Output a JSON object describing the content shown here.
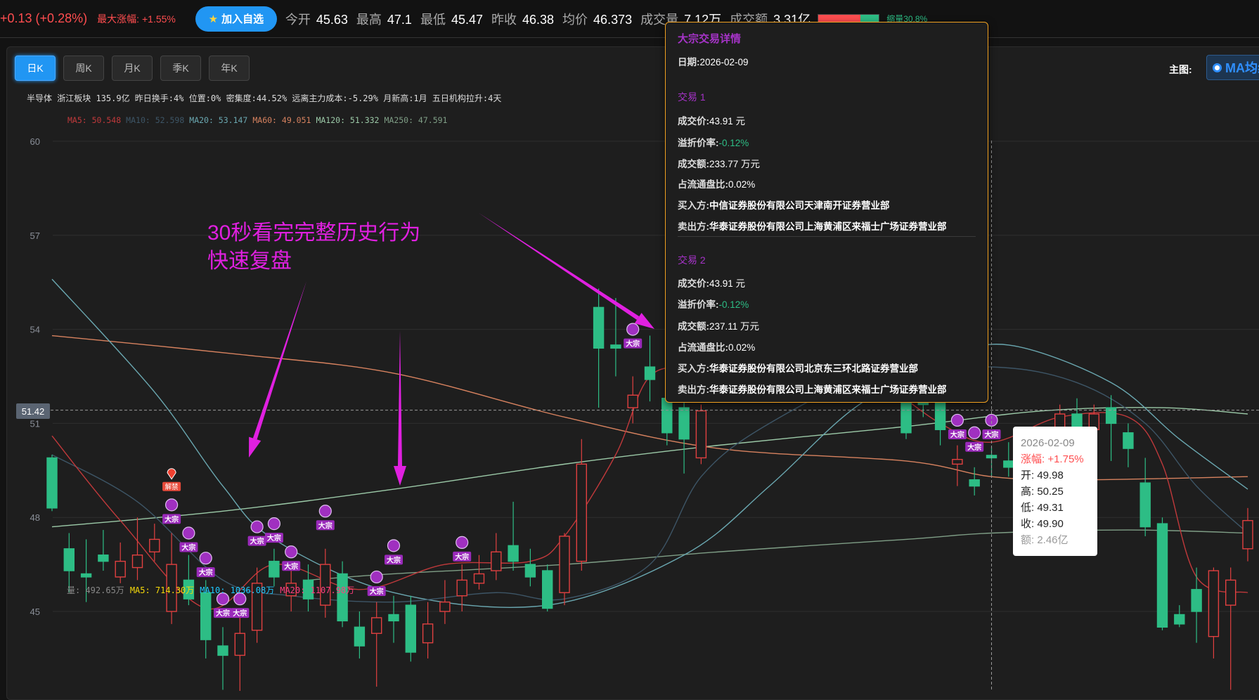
{
  "topbar": {
    "change": "+0.13 (+0.28%)",
    "max_rise_label": "最大涨幅:",
    "max_rise": "+1.55%",
    "fav_button": "加入自选",
    "fav_icon": "star-icon",
    "stats": [
      {
        "label": "今开",
        "value": "45.63"
      },
      {
        "label": "最高",
        "value": "47.1"
      },
      {
        "label": "最低",
        "value": "45.47"
      },
      {
        "label": "昨收",
        "value": "46.38"
      },
      {
        "label": "均价",
        "value": "46.373"
      },
      {
        "label": "成交量",
        "value": "7.12万"
      },
      {
        "label": "成交额",
        "value": "3.31亿"
      }
    ],
    "volume_ratio_bar": {
      "red_fraction": 0.69,
      "label": "缩量30.8%"
    }
  },
  "panel": {
    "tabs": [
      "日K",
      "周K",
      "月K",
      "季K",
      "年K"
    ],
    "active_tab": "日K",
    "info_line": "半导体 浙江板块 135.9亿 昨日换手:4% 位置:0% 密集度:44.52% 远离主力成本:-5.29% 月新高:1月 五日机构拉升:4天",
    "main_chart_label": "主图:",
    "main_chart_option": "MA均线",
    "ma_legend": [
      {
        "text": "MA5: 50.548",
        "color": "#c0393b"
      },
      {
        "text": "MA10: 52.598",
        "color": "#3d5566"
      },
      {
        "text": "MA20: 53.147",
        "color": "#6aa7b0"
      },
      {
        "text": "MA60: 49.051",
        "color": "#d7825f"
      },
      {
        "text": "MA120: 51.332",
        "color": "#9ccaa8"
      },
      {
        "text": "MA250: 47.591",
        "color": "#7f9e86"
      }
    ],
    "volume_legend": [
      {
        "text": "量: 492.65万",
        "color": "#888888"
      },
      {
        "text": "MA5: 714.30万",
        "color": "#f5d90a"
      },
      {
        "text": "MA10: 1036.08万",
        "color": "#1ec8ff"
      },
      {
        "text": "MA20: 1107.98万",
        "color": "#ff3d7f"
      }
    ],
    "crosshair_price": "51.42",
    "annotation": {
      "line1": "30秒看完完整历史行为",
      "line2": "快速复盘",
      "color": "#e020e0"
    }
  },
  "block_trade": {
    "title": "大宗交易详情",
    "date_label": "日期:",
    "date": "2026-02-09",
    "trades": [
      {
        "title": "交易 1",
        "price_label": "成交价:",
        "price": "43.91 元",
        "premium_label": "溢折价率:",
        "premium": "-0.12%",
        "amount_label": "成交额:",
        "amount": "233.77 万元",
        "float_label": "占流通盘比:",
        "float": "0.02%",
        "buyer_label": "买入方:",
        "buyer": "中信证券股份有限公司天津南开证券营业部",
        "seller_label": "卖出方:",
        "seller": "华泰证券股份有限公司上海黄浦区来福士广场证券营业部"
      },
      {
        "title": "交易 2",
        "price_label": "成交价:",
        "price": "43.91 元",
        "premium_label": "溢折价率:",
        "premium": "-0.12%",
        "amount_label": "成交额:",
        "amount": "237.11 万元",
        "float_label": "占流通盘比:",
        "float": "0.02%",
        "buyer_label": "买入方:",
        "buyer": "华泰证券股份有限公司北京东三环北路证券营业部",
        "seller_label": "卖出方:",
        "seller": "华泰证券股份有限公司上海黄浦区来福士广场证券营业部"
      }
    ]
  },
  "ohlc_tooltip": {
    "date": "2026-02-09",
    "change": "涨幅: +1.75%",
    "open": "开: 49.98",
    "high": "高: 50.25",
    "low": "低: 49.31",
    "close": "收: 49.90",
    "amount": "额: 2.46亿"
  },
  "chart_data": {
    "type": "candlestick",
    "yticks": [
      60,
      57,
      54,
      51,
      48,
      45
    ],
    "ylim": [
      42,
      60
    ],
    "grid": true,
    "up_color": "#e04040",
    "down_color": "#2dbd85",
    "ohlc": [
      [
        49.9,
        50,
        48.2,
        48.3
      ],
      [
        47,
        47.5,
        45.6,
        46.3
      ],
      [
        46.2,
        47.3,
        45.3,
        46.1
      ],
      [
        46.8,
        47.6,
        46.3,
        46.6
      ],
      [
        46.1,
        47.2,
        45.9,
        46.6
      ],
      [
        46.4,
        48,
        46,
        46.8
      ],
      [
        46.9,
        47.8,
        46.6,
        47.3
      ],
      [
        45,
        47.5,
        44.6,
        46.5
      ],
      [
        46,
        46.8,
        45.2,
        45.4
      ],
      [
        45.6,
        46,
        43.5,
        44.1
      ],
      [
        43.9,
        44.5,
        42.5,
        43.6
      ],
      [
        43.6,
        44.8,
        42.2,
        44.3
      ],
      [
        44.4,
        46.4,
        44,
        45.9
      ],
      [
        46.6,
        47,
        45.8,
        46.1
      ],
      [
        45.5,
        46.3,
        45,
        45.9
      ],
      [
        46,
        46.5,
        45,
        45.4
      ],
      [
        45.2,
        47,
        44.8,
        46.5
      ],
      [
        46.2,
        46.6,
        44.5,
        44.7
      ],
      [
        44.5,
        45,
        43.5,
        43.9
      ],
      [
        44.3,
        45.3,
        42.6,
        44.8
      ],
      [
        44.9,
        45.5,
        44,
        44.7
      ],
      [
        45.2,
        45.5,
        43.4,
        43.7
      ],
      [
        44,
        45.3,
        43.5,
        44.6
      ],
      [
        45,
        46,
        44.6,
        45.3
      ],
      [
        45.5,
        46.5,
        45,
        46
      ],
      [
        45.9,
        46.8,
        45.7,
        46.2
      ],
      [
        46.3,
        47.5,
        46,
        46.9
      ],
      [
        47.1,
        48.5,
        46.3,
        46.6
      ],
      [
        46.5,
        47,
        45.8,
        46.1
      ],
      [
        46.3,
        46.5,
        45,
        45.1
      ],
      [
        45.6,
        47.5,
        45.2,
        47.4
      ],
      [
        46.6,
        50.5,
        46.3,
        49.7
      ],
      [
        54.7,
        55.3,
        51.5,
        53.4
      ],
      [
        53.5,
        55,
        52.5,
        53.4
      ],
      [
        51.5,
        52.5,
        51,
        51.9
      ],
      [
        52.8,
        53.8,
        51.7,
        52.4
      ],
      [
        51.8,
        52.5,
        50.3,
        50.7
      ],
      [
        51.5,
        52,
        49.4,
        50.5
      ],
      [
        49.9,
        51.6,
        49.7,
        51.4
      ],
      [
        52.2,
        52.9,
        51.8,
        53
      ],
      [
        52.9,
        54,
        52.5,
        53.5
      ],
      [
        53.5,
        54.2,
        52.6,
        53
      ],
      [
        53,
        54.4,
        52.8,
        53.8
      ],
      [
        53.8,
        54.1,
        52.9,
        53.2
      ],
      [
        53.2,
        53.5,
        52.3,
        52.6
      ],
      [
        52.6,
        53.4,
        52.2,
        53.1
      ],
      [
        53.1,
        53.3,
        52.2,
        52.5
      ],
      [
        52.5,
        53.2,
        52.1,
        52.9
      ],
      [
        52.9,
        53.1,
        52,
        52.3
      ],
      [
        52.3,
        52.9,
        51.8,
        52.6
      ],
      [
        52,
        52.5,
        50.5,
        50.7
      ],
      [
        51.8,
        52.4,
        51.2,
        51.6
      ],
      [
        51.7,
        52.3,
        50.3,
        50.8
      ],
      [
        49.7,
        50.3,
        49,
        49.85
      ],
      [
        49.2,
        49.6,
        48.7,
        49
      ],
      [
        49.98,
        50.25,
        49.31,
        49.9
      ],
      [
        49.8,
        50.4,
        49.3,
        49.6
      ],
      [
        49.6,
        50,
        49.2,
        49.8
      ],
      [
        49.8,
        50.6,
        49.7,
        50.4
      ],
      [
        50.6,
        51.6,
        50.2,
        51.3
      ],
      [
        51.3,
        51.8,
        48.8,
        50.9
      ],
      [
        50.8,
        51.6,
        50.3,
        51.3
      ],
      [
        51.5,
        51.9,
        49.8,
        51
      ],
      [
        50.7,
        51,
        49.6,
        50.2
      ],
      [
        49.1,
        49.9,
        47.4,
        47.7
      ],
      [
        47.8,
        48,
        44.4,
        44.5
      ],
      [
        44.9,
        45.2,
        44.5,
        44.6
      ],
      [
        45.7,
        46.4,
        44,
        45
      ],
      [
        44.2,
        46.4,
        43.5,
        46.3
      ],
      [
        45.2,
        46.4,
        42.5,
        46
      ],
      [
        47,
        48.3,
        46.6,
        47.9
      ]
    ],
    "ma_lines": [
      {
        "name": "MA250",
        "color": "#7f9e86",
        "points": [
          [
            15,
            46
          ],
          [
            20,
            46.2
          ],
          [
            30,
            46.5
          ],
          [
            39,
            46.9
          ],
          [
            50,
            47.3
          ],
          [
            55,
            47.5
          ],
          [
            63,
            47.6
          ],
          [
            70,
            47.5
          ]
        ]
      },
      {
        "name": "MA120",
        "color": "#9ccaa8",
        "points": [
          [
            0,
            47.7
          ],
          [
            10,
            48.2
          ],
          [
            20,
            48.9
          ],
          [
            30,
            49.7
          ],
          [
            39,
            50.3
          ],
          [
            50,
            50.9
          ],
          [
            58,
            51.4
          ],
          [
            65,
            51.5
          ],
          [
            70,
            51.3
          ]
        ]
      },
      {
        "name": "MA60",
        "color": "#d7825f",
        "points": [
          [
            0,
            53.8
          ],
          [
            11,
            53.2
          ],
          [
            20,
            52.6
          ],
          [
            30,
            51.2
          ],
          [
            39,
            50.2
          ],
          [
            50,
            49.8
          ],
          [
            55,
            49.3
          ],
          [
            60,
            49.2
          ],
          [
            70,
            49.3
          ]
        ]
      },
      {
        "name": "MA20",
        "color": "#6aa7b0",
        "points": [
          [
            0,
            55.6
          ],
          [
            6,
            52
          ],
          [
            10,
            49
          ],
          [
            13,
            47.3
          ],
          [
            20,
            45.6
          ],
          [
            29,
            45.2
          ],
          [
            37,
            46.8
          ],
          [
            42,
            49
          ],
          [
            47,
            51.5
          ],
          [
            52,
            53
          ],
          [
            56,
            53.5
          ],
          [
            62,
            52.3
          ],
          [
            66,
            50.5
          ],
          [
            70,
            48.9
          ]
        ]
      },
      {
        "name": "MA10",
        "color": "#3d5566",
        "points": [
          [
            0,
            50
          ],
          [
            5,
            48.5
          ],
          [
            10,
            46
          ],
          [
            14,
            45.5
          ],
          [
            20,
            45.3
          ],
          [
            26,
            45.6
          ],
          [
            30,
            45.4
          ],
          [
            35,
            46.5
          ],
          [
            38,
            49.3
          ],
          [
            42,
            51
          ],
          [
            48,
            52.5
          ],
          [
            55,
            52.8
          ],
          [
            60,
            52.3
          ],
          [
            64,
            51
          ],
          [
            67,
            49
          ],
          [
            70,
            47.5
          ]
        ]
      },
      {
        "name": "MA5",
        "color": "#c0393b",
        "points": [
          [
            0,
            50.6
          ],
          [
            4,
            47.9
          ],
          [
            9,
            45.1
          ],
          [
            13,
            46.5
          ],
          [
            18,
            45.7
          ],
          [
            23,
            46.5
          ],
          [
            28,
            46.6
          ],
          [
            30,
            47.4
          ],
          [
            33,
            50
          ],
          [
            35,
            52.5
          ],
          [
            38,
            52.8
          ],
          [
            42,
            53.2
          ],
          [
            47,
            52.8
          ],
          [
            52,
            51
          ],
          [
            55,
            50.4
          ],
          [
            59,
            51.2
          ],
          [
            63,
            51.2
          ],
          [
            65,
            49.7
          ],
          [
            67,
            46.1
          ],
          [
            70,
            45.6
          ]
        ]
      }
    ],
    "block_trade_marker_label": "大宗",
    "unlock_marker_label": "解禁",
    "block_trade_markers": [
      7,
      8,
      9,
      10,
      11,
      12,
      13,
      14,
      16,
      19,
      20,
      24,
      34,
      53,
      54,
      55
    ],
    "unlock_markers": [
      7
    ],
    "crosshair": {
      "index": 55,
      "price": 51.42
    }
  }
}
